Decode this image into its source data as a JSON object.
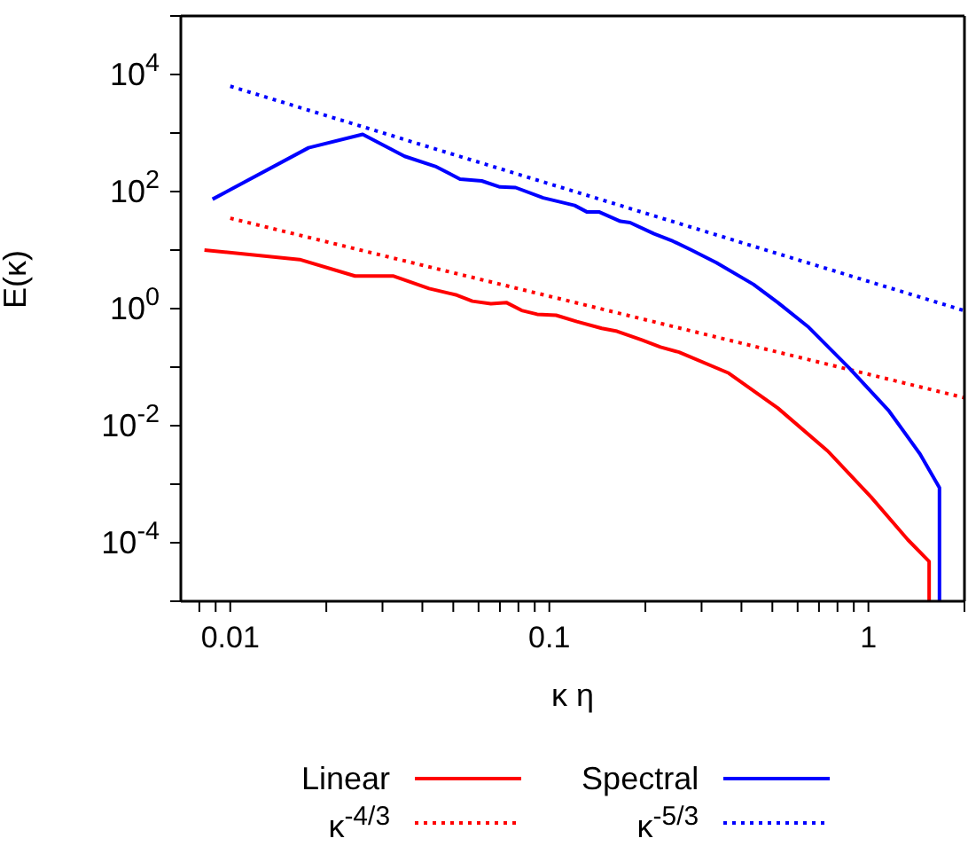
{
  "chart_data": {
    "type": "line",
    "xlabel": "κ η",
    "ylabel": "E(κ)",
    "log": "xy",
    "legend": "bottom",
    "xlim": [
      0.007,
      2
    ],
    "ylim": [
      1e-05,
      100000
    ],
    "xticks": [
      {
        "value": 0.008,
        "label": null
      },
      {
        "value": 0.009,
        "label": null
      },
      {
        "value": 0.01,
        "label": "0.01"
      },
      {
        "value": 0.02,
        "label": null
      },
      {
        "value": 0.03,
        "label": null
      },
      {
        "value": 0.04,
        "label": null
      },
      {
        "value": 0.05,
        "label": null
      },
      {
        "value": 0.06,
        "label": null
      },
      {
        "value": 0.07,
        "label": null
      },
      {
        "value": 0.08,
        "label": null
      },
      {
        "value": 0.09,
        "label": null
      },
      {
        "value": 0.1,
        "label": "0.1"
      },
      {
        "value": 0.2,
        "label": null
      },
      {
        "value": 0.3,
        "label": null
      },
      {
        "value": 0.4,
        "label": null
      },
      {
        "value": 0.5,
        "label": null
      },
      {
        "value": 0.6,
        "label": null
      },
      {
        "value": 0.7,
        "label": null
      },
      {
        "value": 0.8,
        "label": null
      },
      {
        "value": 0.9,
        "label": null
      },
      1,
      {
        "value": 2,
        "label": null
      }
    ],
    "yticks": [
      {
        "value": 1e-05,
        "label": null
      },
      {
        "value": 0.0001,
        "label": "10$^{-4}$"
      },
      {
        "value": 0.001,
        "label": null
      },
      {
        "value": 0.01,
        "label": "10$^{-2}$"
      },
      {
        "value": 0.1,
        "label": null
      },
      {
        "value": 1,
        "label": "10$^{0}$"
      },
      {
        "value": 10,
        "label": null
      },
      {
        "value": 100,
        "label": "10$^{2}$"
      },
      {
        "value": 1000,
        "label": null
      },
      {
        "value": 10000,
        "label": "10$^{4}$"
      },
      {
        "value": 100000,
        "label": null
      }
    ],
    "series": [
      {
        "name": "Linear",
        "color": "#ff0000",
        "line_style": "solid",
        "x": [
          0.0083,
          0.0165,
          0.0246,
          0.0325,
          0.042,
          0.0513,
          0.0574,
          0.0656,
          0.0733,
          0.0819,
          0.0916,
          0.105,
          0.122,
          0.146,
          0.163,
          0.195,
          0.223,
          0.255,
          0.365,
          0.52,
          0.745,
          1.02,
          1.33,
          1.55,
          1.55
        ],
        "values": [
          10,
          6.9,
          3.6,
          3.6,
          2.2,
          1.7,
          1.34,
          1.21,
          1.27,
          0.93,
          0.8,
          0.77,
          0.6,
          0.46,
          0.41,
          0.29,
          0.22,
          0.18,
          0.079,
          0.02,
          0.0037,
          0.0006,
          0.000112,
          4.8e-05,
          1e-05
        ]
      },
      {
        "name": "κ$^{-4/3}$",
        "color": "#ff0000",
        "line_style": "dotted",
        "x": [
          0.01,
          2
        ],
        "values": [
          35,
          0.03
        ]
      },
      {
        "name": "Spectral",
        "color": "#0000ff",
        "line_style": "solid",
        "x": [
          0.0088,
          0.0176,
          0.026,
          0.0352,
          0.0439,
          0.0525,
          0.0614,
          0.07,
          0.0784,
          0.0957,
          0.12,
          0.131,
          0.143,
          0.167,
          0.179,
          0.213,
          0.244,
          0.279,
          0.334,
          0.436,
          0.52,
          0.65,
          0.87,
          1.16,
          1.45,
          1.67,
          1.67
        ],
        "values": [
          74,
          560,
          950,
          400,
          270,
          163,
          152,
          120,
          117,
          78,
          58,
          45,
          45,
          31,
          29.5,
          19,
          14.2,
          10,
          6.1,
          2.6,
          1.27,
          0.48,
          0.097,
          0.0178,
          0.0033,
          0.00087,
          1e-05
        ]
      },
      {
        "name": "κ$^{-5/3}$",
        "color": "#0000ff",
        "line_style": "dotted",
        "x": [
          0.01,
          2
        ],
        "values": [
          6300,
          0.92
        ]
      }
    ]
  }
}
